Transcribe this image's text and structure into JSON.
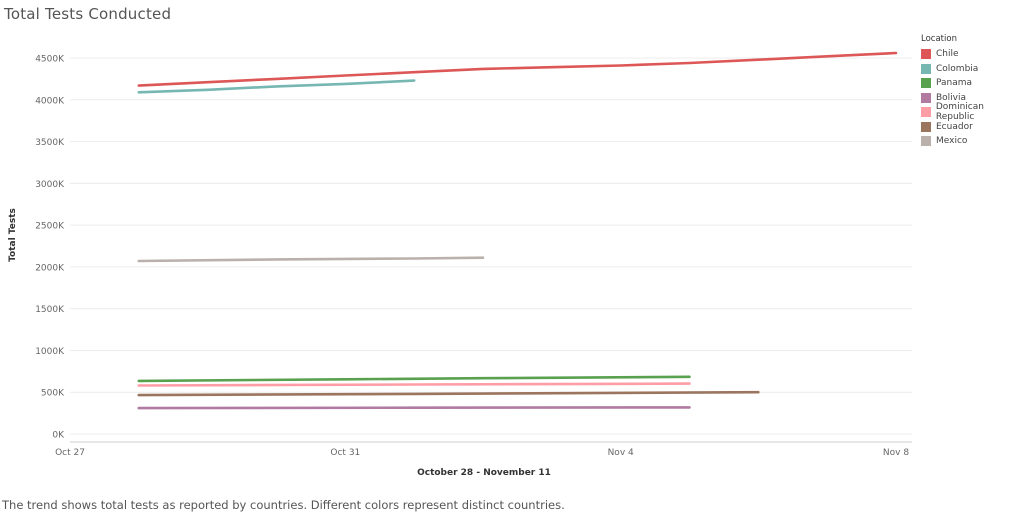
{
  "page": {
    "title": "Total Tests Conducted",
    "caption": "The trend shows total tests as reported by countries. Different colors represent distinct countries."
  },
  "chart_data": {
    "type": "line",
    "title": "Total Tests Conducted",
    "xlabel": "October 28 - November 11",
    "ylabel": "Total Tests",
    "ylim": [
      0,
      4500000
    ],
    "xlim": [
      "2020-10-27",
      "2020-11-08"
    ],
    "x_ticks": [
      {
        "date": "2020-10-27",
        "label": "Oct 27"
      },
      {
        "date": "2020-10-31",
        "label": "Oct 31"
      },
      {
        "date": "2020-11-04",
        "label": "Nov 4"
      },
      {
        "date": "2020-11-08",
        "label": "Nov 8"
      }
    ],
    "y_ticks": [
      {
        "value": 0,
        "label": "0K"
      },
      {
        "value": 500000,
        "label": "500K"
      },
      {
        "value": 1000000,
        "label": "1000K"
      },
      {
        "value": 1500000,
        "label": "1500K"
      },
      {
        "value": 2000000,
        "label": "2000K"
      },
      {
        "value": 2500000,
        "label": "2500K"
      },
      {
        "value": 3000000,
        "label": "3000K"
      },
      {
        "value": 3500000,
        "label": "3500K"
      },
      {
        "value": 4000000,
        "label": "4000K"
      },
      {
        "value": 4500000,
        "label": "4500K"
      }
    ],
    "grid": true,
    "legend": {
      "title": "Location",
      "position": "right"
    },
    "series": [
      {
        "name": "Chile",
        "color": "#dd5757",
        "points": [
          {
            "date": "2020-10-28",
            "y": 4170000
          },
          {
            "date": "2020-10-29",
            "y": 4210000
          },
          {
            "date": "2020-10-30",
            "y": 4250000
          },
          {
            "date": "2020-10-31",
            "y": 4290000
          },
          {
            "date": "2020-11-01",
            "y": 4330000
          },
          {
            "date": "2020-11-02",
            "y": 4370000
          },
          {
            "date": "2020-11-03",
            "y": 4390000
          },
          {
            "date": "2020-11-04",
            "y": 4410000
          },
          {
            "date": "2020-11-05",
            "y": 4440000
          },
          {
            "date": "2020-11-06",
            "y": 4480000
          },
          {
            "date": "2020-11-07",
            "y": 4520000
          },
          {
            "date": "2020-11-08",
            "y": 4560000
          }
        ]
      },
      {
        "name": "Colombia",
        "color": "#76b7b2",
        "points": [
          {
            "date": "2020-10-28",
            "y": 4090000
          },
          {
            "date": "2020-10-29",
            "y": 4120000
          },
          {
            "date": "2020-10-30",
            "y": 4160000
          },
          {
            "date": "2020-10-31",
            "y": 4190000
          },
          {
            "date": "2020-11-01",
            "y": 4230000
          }
        ]
      },
      {
        "name": "Panama",
        "color": "#59a14f",
        "points": [
          {
            "date": "2020-10-28",
            "y": 635000
          },
          {
            "date": "2020-10-31",
            "y": 655000
          },
          {
            "date": "2020-11-02",
            "y": 668000
          },
          {
            "date": "2020-11-05",
            "y": 685000
          }
        ]
      },
      {
        "name": "Bolivia",
        "color": "#b07aa1",
        "points": [
          {
            "date": "2020-10-28",
            "y": 310000
          },
          {
            "date": "2020-11-01",
            "y": 315000
          },
          {
            "date": "2020-11-05",
            "y": 318000
          }
        ]
      },
      {
        "name": "Dominican Republic",
        "color": "#ff9da7",
        "points": [
          {
            "date": "2020-10-28",
            "y": 580000
          },
          {
            "date": "2020-11-01",
            "y": 592000
          },
          {
            "date": "2020-11-05",
            "y": 603000
          }
        ]
      },
      {
        "name": "Ecuador",
        "color": "#9c755f",
        "points": [
          {
            "date": "2020-10-28",
            "y": 465000
          },
          {
            "date": "2020-11-01",
            "y": 480000
          },
          {
            "date": "2020-11-06",
            "y": 500000
          }
        ]
      },
      {
        "name": "Mexico",
        "color": "#bab0ac",
        "points": [
          {
            "date": "2020-10-28",
            "y": 2070000
          },
          {
            "date": "2020-10-30",
            "y": 2090000
          },
          {
            "date": "2020-11-01",
            "y": 2100000
          },
          {
            "date": "2020-11-02",
            "y": 2110000
          }
        ]
      }
    ]
  }
}
